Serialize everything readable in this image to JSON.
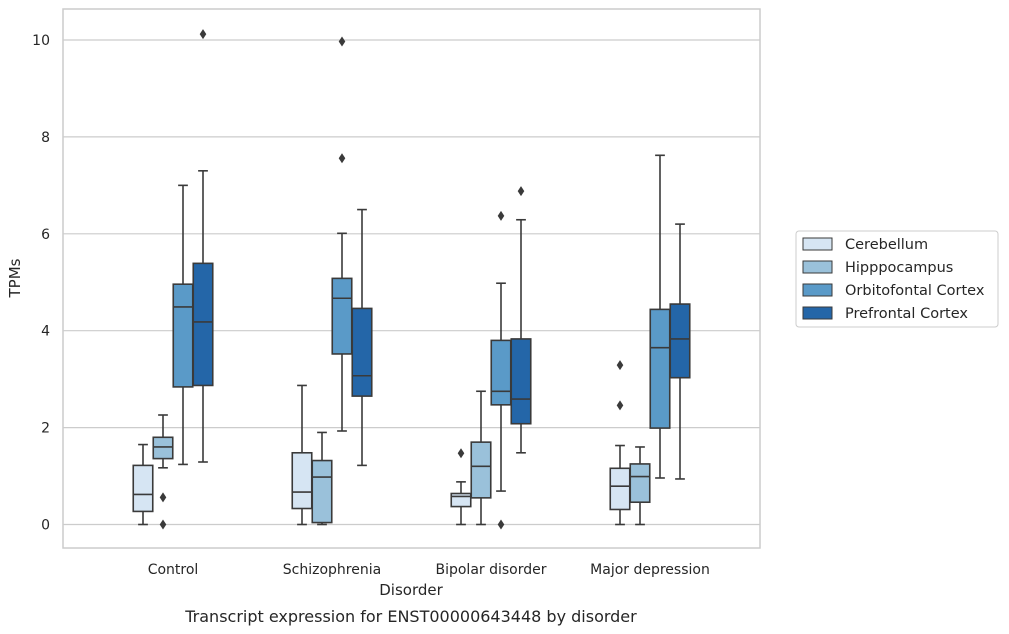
{
  "chart_data": {
    "type": "box",
    "xlabel": "Disorder",
    "ylabel": "TPMs",
    "caption": "Transcript expression for ENST00000643448 by disorder",
    "ylim": [
      -0.5,
      10.6
    ],
    "yticks": [
      0,
      2,
      4,
      6,
      8,
      10
    ],
    "grid": true,
    "legend_position": "right",
    "categories": [
      "Control",
      "Schizophrenia",
      "Bipolar disorder",
      "Major depression"
    ],
    "series": [
      {
        "name": "Cerebellum",
        "color": "#d6e5f3",
        "boxes": [
          {
            "whisker_low": 0.0,
            "q1": 0.27,
            "median": 0.62,
            "q3": 1.22,
            "whisker_high": 1.65,
            "outliers": []
          },
          {
            "whisker_low": 0.0,
            "q1": 0.33,
            "median": 0.67,
            "q3": 1.48,
            "whisker_high": 2.87,
            "outliers": []
          },
          {
            "whisker_low": 0.0,
            "q1": 0.37,
            "median": 0.58,
            "q3": 0.64,
            "whisker_high": 0.88,
            "outliers": [
              1.47
            ]
          },
          {
            "whisker_low": 0.0,
            "q1": 0.31,
            "median": 0.79,
            "q3": 1.16,
            "whisker_high": 1.63,
            "outliers": [
              2.46,
              3.29
            ]
          }
        ]
      },
      {
        "name": "Hipppocampus",
        "color": "#9ac1da",
        "boxes": [
          {
            "whisker_low": 1.17,
            "q1": 1.36,
            "median": 1.6,
            "q3": 1.8,
            "whisker_high": 2.26,
            "outliers": [
              0.0,
              0.56
            ]
          },
          {
            "whisker_low": 0.0,
            "q1": 0.04,
            "median": 0.98,
            "q3": 1.32,
            "whisker_high": 1.9,
            "outliers": []
          },
          {
            "whisker_low": 0.0,
            "q1": 0.55,
            "median": 1.2,
            "q3": 1.7,
            "whisker_high": 2.75,
            "outliers": []
          },
          {
            "whisker_low": 0.0,
            "q1": 0.46,
            "median": 0.99,
            "q3": 1.25,
            "whisker_high": 1.6,
            "outliers": []
          }
        ]
      },
      {
        "name": "Orbitofontal Cortex",
        "color": "#5a9ac8",
        "boxes": [
          {
            "whisker_low": 1.24,
            "q1": 2.84,
            "median": 4.49,
            "q3": 4.96,
            "whisker_high": 7.0,
            "outliers": []
          },
          {
            "whisker_low": 1.93,
            "q1": 3.52,
            "median": 4.67,
            "q3": 5.08,
            "whisker_high": 6.01,
            "outliers": [
              7.56,
              9.97
            ]
          },
          {
            "whisker_low": 0.69,
            "q1": 2.47,
            "median": 2.75,
            "q3": 3.8,
            "whisker_high": 4.98,
            "outliers": [
              0.0,
              6.37
            ]
          },
          {
            "whisker_low": 0.96,
            "q1": 1.99,
            "median": 3.65,
            "q3": 4.44,
            "whisker_high": 7.62,
            "outliers": []
          }
        ]
      },
      {
        "name": "Prefrontal Cortex",
        "color": "#2466a8",
        "boxes": [
          {
            "whisker_low": 1.29,
            "q1": 2.87,
            "median": 4.18,
            "q3": 5.39,
            "whisker_high": 7.3,
            "outliers": [
              10.12
            ]
          },
          {
            "whisker_low": 1.22,
            "q1": 2.65,
            "median": 3.07,
            "q3": 4.46,
            "whisker_high": 6.5,
            "outliers": []
          },
          {
            "whisker_low": 1.48,
            "q1": 2.08,
            "median": 2.59,
            "q3": 3.83,
            "whisker_high": 6.29,
            "outliers": [
              6.88
            ]
          },
          {
            "whisker_low": 0.94,
            "q1": 3.03,
            "median": 3.83,
            "q3": 4.55,
            "whisker_high": 6.2,
            "outliers": []
          }
        ]
      }
    ]
  }
}
